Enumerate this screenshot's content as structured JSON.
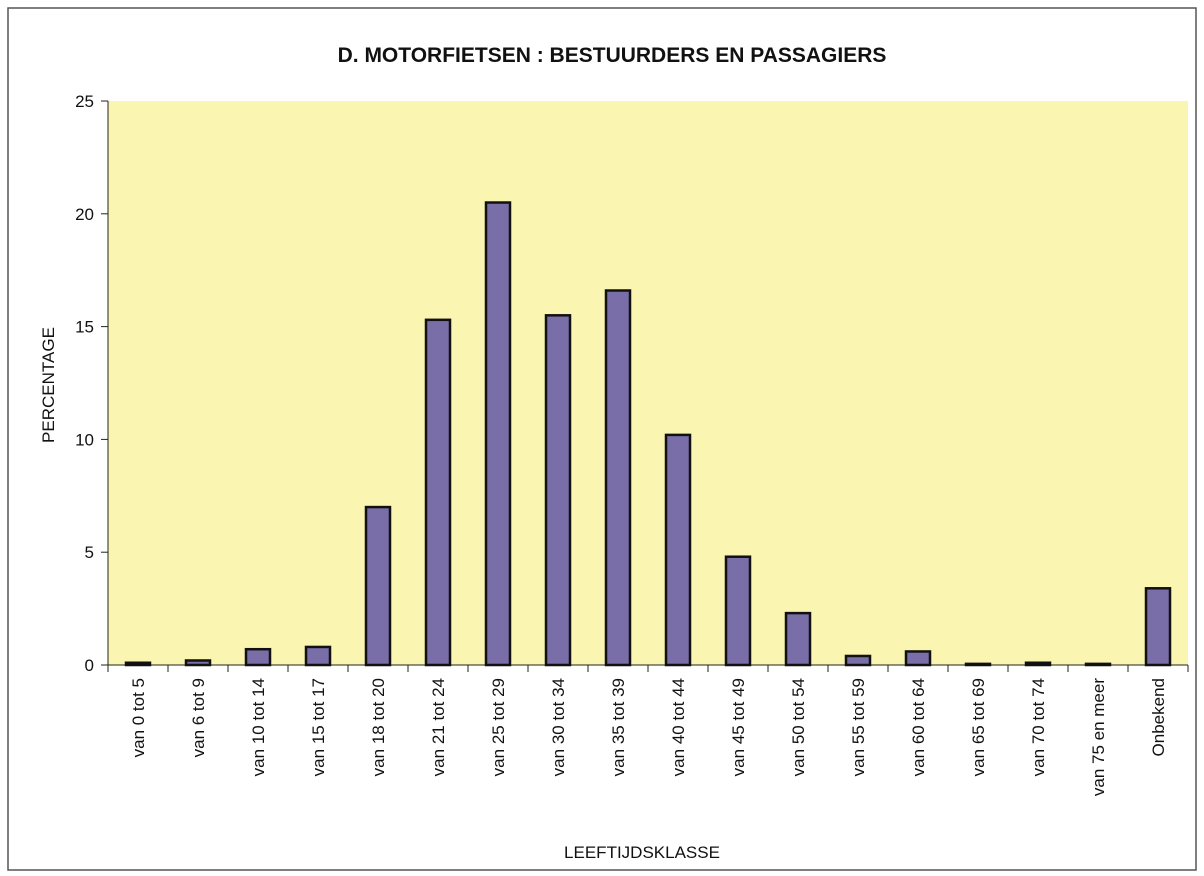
{
  "chart_data": {
    "type": "bar",
    "title": "D. MOTORFIETSEN : BESTUURDERS EN PASSAGIERS",
    "y_label": "PERCENTAGE",
    "x_label": "LEEFTIJDSKLASSE",
    "categories": [
      "van 0 tot 5",
      "van 6 tot 9",
      "van 10 tot 14",
      "van 15 tot 17",
      "van 18 tot 20",
      "van 21 tot 24",
      "van 25 tot 29",
      "van 30 tot 34",
      "van 35 tot 39",
      "van 40 tot 44",
      "van 45 tot 49",
      "van 50 tot 54",
      "van 55 tot 59",
      "van 60 tot 64",
      "van 65 tot 69",
      "van 70 tot 74",
      "van 75 en meer",
      "Onbekend"
    ],
    "values": [
      0.1,
      0.2,
      0.7,
      0.8,
      7.0,
      15.3,
      20.5,
      15.5,
      16.6,
      10.2,
      4.8,
      2.3,
      0.4,
      0.6,
      0.05,
      0.1,
      0.05,
      3.4
    ],
    "color": "#7a6ea8",
    "plot_background": "#faf5b0",
    "ylim": [
      0,
      25
    ],
    "yticks": [
      0,
      5,
      10,
      15,
      20,
      25
    ],
    "grid": false
  }
}
